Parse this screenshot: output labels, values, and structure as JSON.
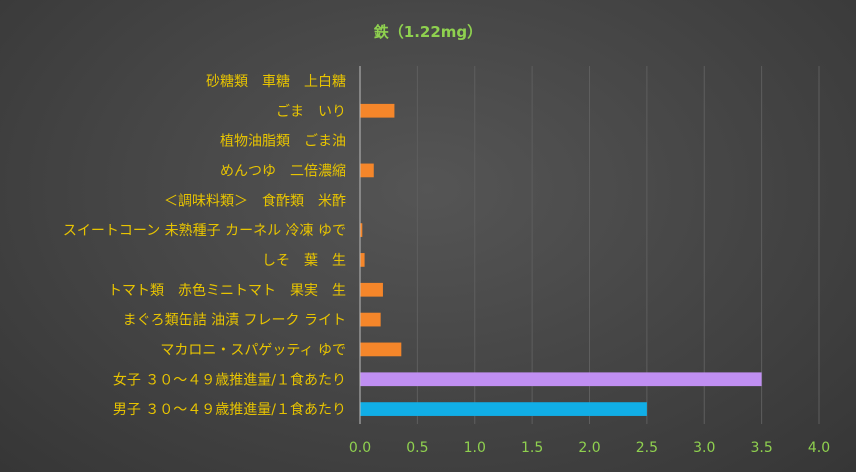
{
  "chart_data": {
    "type": "bar",
    "orientation": "horizontal",
    "title": "鉄（1.22mg）",
    "categories": [
      "砂糖類　車糖　上白糖",
      "ごま　いり",
      "植物油脂類　ごま油",
      "めんつゆ　二倍濃縮",
      "＜調味料類＞　食酢類　米酢",
      "スイートコーン 未熟種子 カーネル 冷凍 ゆで",
      "しそ　葉　生",
      "トマト類　赤色ミニトマト　果実　生",
      "まぐろ類缶詰 油漬 フレーク ライト",
      "マカロニ・スパゲッティ ゆで",
      "女子 ３０～４９歳推進量/１食あたり",
      "男子 ３０～４９歳推進量/１食あたり"
    ],
    "values": [
      0.0,
      0.3,
      0.0,
      0.12,
      0.0,
      0.02,
      0.04,
      0.2,
      0.18,
      0.36,
      3.5,
      2.5
    ],
    "colors": [
      "#f5862a",
      "#f5862a",
      "#f5862a",
      "#f5862a",
      "#f5862a",
      "#f5862a",
      "#f5862a",
      "#f5862a",
      "#f5862a",
      "#f5862a",
      "#c08ff2",
      "#11aee6"
    ],
    "xlim": [
      0,
      4.0
    ],
    "ticks": [
      "0.0",
      "0.5",
      "1.0",
      "1.5",
      "2.0",
      "2.5",
      "3.0",
      "3.5",
      "4.0"
    ],
    "grid": true
  }
}
